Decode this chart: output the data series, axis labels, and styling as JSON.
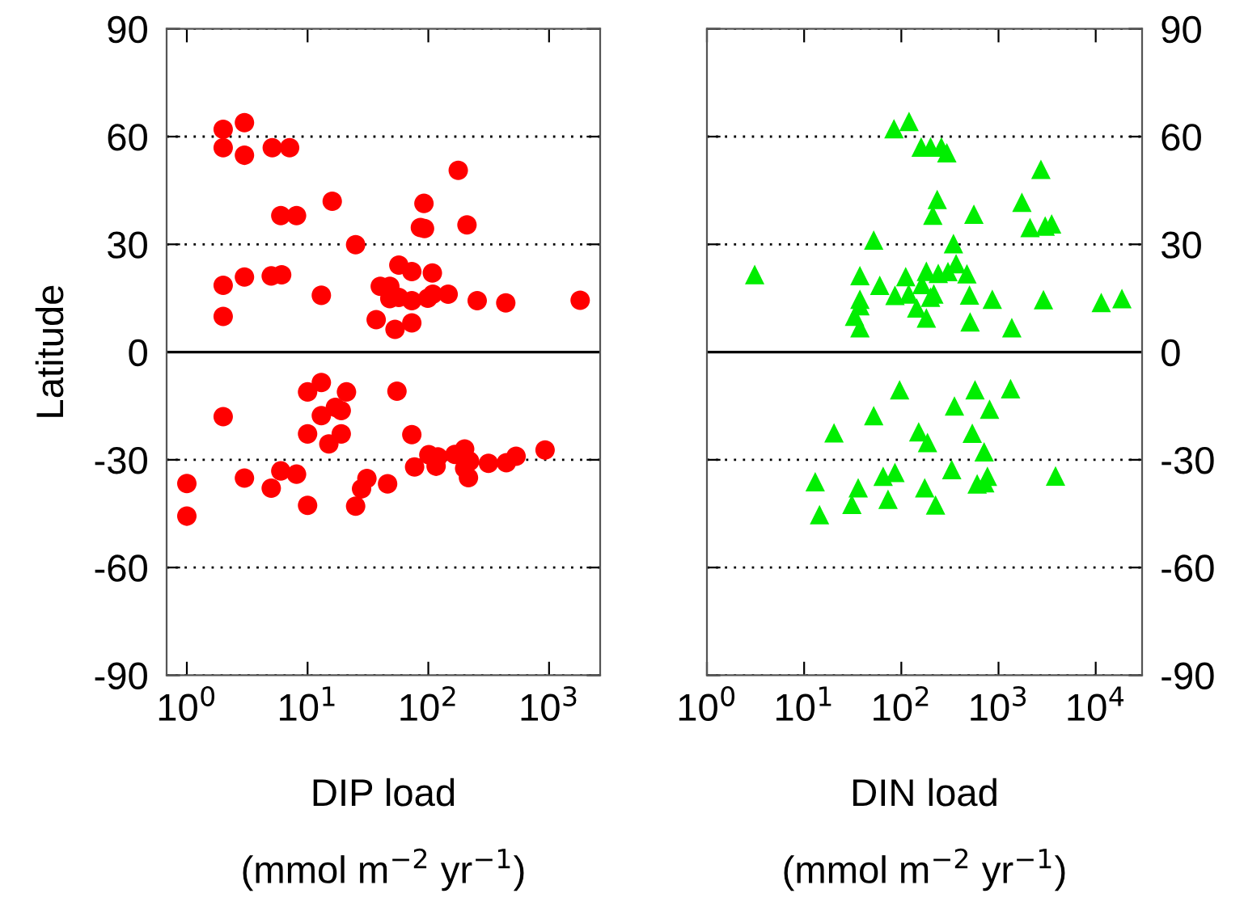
{
  "chart_data": [
    {
      "type": "scatter",
      "xlabel": "DIP load\n(mmol m$^{−2}$ yr$^{−1}$)",
      "ylabel": "Latitude",
      "log": "x",
      "marker": "circle",
      "grid": "y",
      "tick_labels": true,
      "xlim": [
        0.68,
        2650
      ],
      "xticks": [
        {
          "value": 1,
          "label": "10$^{0}$"
        },
        {
          "value": 10,
          "label": "10$^{1}$"
        },
        {
          "value": 100,
          "label": "10$^{2}$"
        },
        {
          "value": 1000,
          "label": "10$^{3}$"
        }
      ],
      "ylim": [
        -90,
        90
      ],
      "yticks": [
        -90,
        -60,
        -30,
        0,
        30,
        60,
        90
      ],
      "ref_lines": [
        {
          "axis": "y",
          "value": 0,
          "line_style": "solid",
          "color": "#000000"
        }
      ],
      "series": [
        {
          "color": "#ff0000",
          "x": [
            2.0,
            3.0,
            2.0,
            3.0,
            5.1,
            7.1,
            177,
            16,
            92,
            6.0,
            8.1,
            86,
            93,
            209,
            25,
            57,
            73,
            108,
            2.0,
            3.0,
            5.0,
            6.1,
            13,
            40,
            48,
            48,
            57,
            73,
            99,
            109,
            146,
            254,
            438,
            1810,
            2.0,
            37,
            53,
            73,
            1.0,
            1.0,
            2.0,
            3.0,
            5.0,
            6.0,
            8.1,
            10,
            13,
            21,
            10,
            13,
            17,
            19,
            15,
            19,
            10,
            25,
            28,
            31,
            46,
            55,
            73,
            77,
            101,
            120,
            116,
            166,
            200,
            220,
            200,
            215,
            315,
            443,
            533,
            927
          ],
          "values": [
            62.0,
            63.9,
            56.9,
            54.8,
            56.9,
            56.9,
            50.6,
            42.0,
            41.4,
            38.0,
            38.0,
            34.7,
            34.4,
            35.4,
            29.9,
            24.2,
            22.4,
            22.0,
            18.6,
            20.9,
            21.2,
            21.5,
            15.8,
            18.3,
            18.3,
            14.9,
            15.2,
            14.3,
            15.0,
            16.1,
            16.1,
            14.3,
            13.7,
            14.4,
            9.9,
            9.0,
            6.3,
            8.1,
            -36.6,
            -45.7,
            -18.0,
            -35.1,
            -37.9,
            -33.1,
            -34.0,
            -11.1,
            -8.5,
            -11.1,
            -22.8,
            -17.7,
            -15.4,
            -16.3,
            -25.6,
            -22.8,
            -42.7,
            -42.9,
            -38.1,
            -35.2,
            -36.7,
            -10.9,
            -23.0,
            -32.0,
            -28.6,
            -29.2,
            -31.8,
            -28.5,
            -27.0,
            -30.4,
            -32.4,
            -35.0,
            -31.0,
            -30.8,
            -29.0,
            -27.3
          ]
        }
      ]
    },
    {
      "type": "scatter",
      "xlabel": "DIN load\n(mmol m$^{−2}$ yr$^{−1}$)",
      "log": "x",
      "marker": "triangle",
      "grid": "y",
      "tick_labels": true,
      "xlim": [
        1,
        30000
      ],
      "xticks": [
        {
          "value": 1,
          "label": "10$^{0}$"
        },
        {
          "value": 10,
          "label": "10$^{1}$"
        },
        {
          "value": 100,
          "label": "10$^{2}$"
        },
        {
          "value": 1000,
          "label": "10$^{3}$"
        },
        {
          "value": 10000,
          "label": "10$^{4}$"
        }
      ],
      "y2lim": [
        -90,
        90
      ],
      "y2ticks": [
        -90,
        -60,
        -30,
        0,
        30,
        60,
        90
      ],
      "ref_lines": [
        {
          "axis": "y2",
          "value": 0,
          "line_style": "solid",
          "color": "#000000"
        }
      ],
      "series": [
        {
          "color": "#00ee00",
          "axis": "y2",
          "x": [
            3.1,
            84,
            120,
            160,
            200,
            258,
            294,
            2730,
            234,
            211,
            558,
            1740,
            2110,
            3020,
            3520,
            52,
            344,
            37.5,
            60,
            111,
            181,
            240,
            302,
            366,
            473,
            163,
            86,
            119,
            216,
            200,
            503,
            37.5,
            37.5,
            33,
            37.5,
            144,
            181,
            510,
            863,
            1370,
            2900,
            11400,
            18600,
            96,
            573,
            1330,
            352,
            809,
            52,
            20.3,
            151,
            186,
            537,
            711,
            330,
            86,
            65,
            13,
            36,
            174,
            769,
            603,
            722,
            3860,
            31,
            73,
            225,
            14.4
          ],
          "values": [
            21.6,
            62.2,
            64.2,
            57.1,
            57.1,
            57.1,
            55.5,
            50.9,
            42.5,
            38.1,
            38.4,
            41.7,
            34.7,
            35.1,
            35.7,
            31.2,
            30.2,
            21.3,
            18.6,
            21.0,
            22.5,
            21.9,
            22.4,
            24.6,
            21.8,
            18.8,
            15.8,
            16.2,
            16.2,
            15.3,
            15.9,
            14.7,
            12.9,
            10.0,
            6.8,
            12.3,
            9.5,
            8.4,
            14.7,
            6.8,
            14.6,
            13.8,
            14.9,
            -10.5,
            -10.5,
            -10.2,
            -15.0,
            -15.9,
            -17.7,
            -22.5,
            -22.2,
            -25.2,
            -22.6,
            -27.8,
            -32.7,
            -33.5,
            -34.6,
            -36.1,
            -37.8,
            -37.8,
            -34.6,
            -36.7,
            -36.4,
            -34.5,
            -42.4,
            -41.0,
            -42.6,
            -45.3
          ]
        }
      ]
    }
  ]
}
